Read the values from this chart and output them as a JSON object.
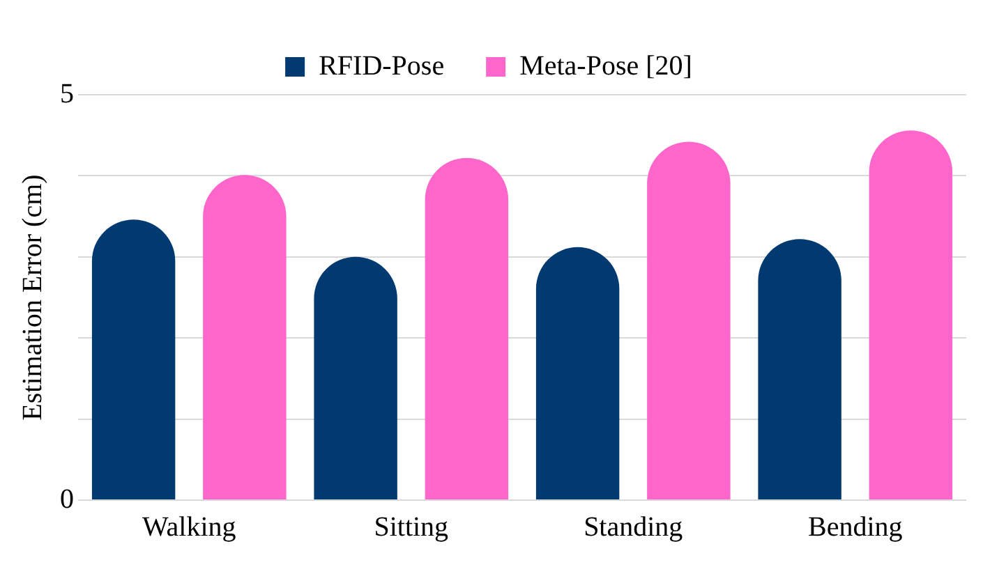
{
  "chart_data": {
    "type": "bar",
    "ylabel": "Estimation Error (cm)",
    "categories": [
      "Walking",
      "Sitting",
      "Standing",
      "Bending"
    ],
    "series": [
      {
        "name": "RFID-Pose",
        "color": "#003a70",
        "values": [
          3.46,
          3.0,
          3.12,
          3.22
        ]
      },
      {
        "name": "Meta-Pose [20]",
        "color": "#ff66cc",
        "values": [
          4.01,
          4.22,
          4.42,
          4.56
        ]
      }
    ],
    "ylim": [
      0,
      5
    ],
    "yticks": [
      0,
      {
        "value": 1,
        "label": null
      },
      {
        "value": 2,
        "label": null
      },
      {
        "value": 3,
        "label": null
      },
      {
        "value": 4,
        "label": null
      },
      5
    ],
    "grid": "y",
    "legend": "top"
  }
}
